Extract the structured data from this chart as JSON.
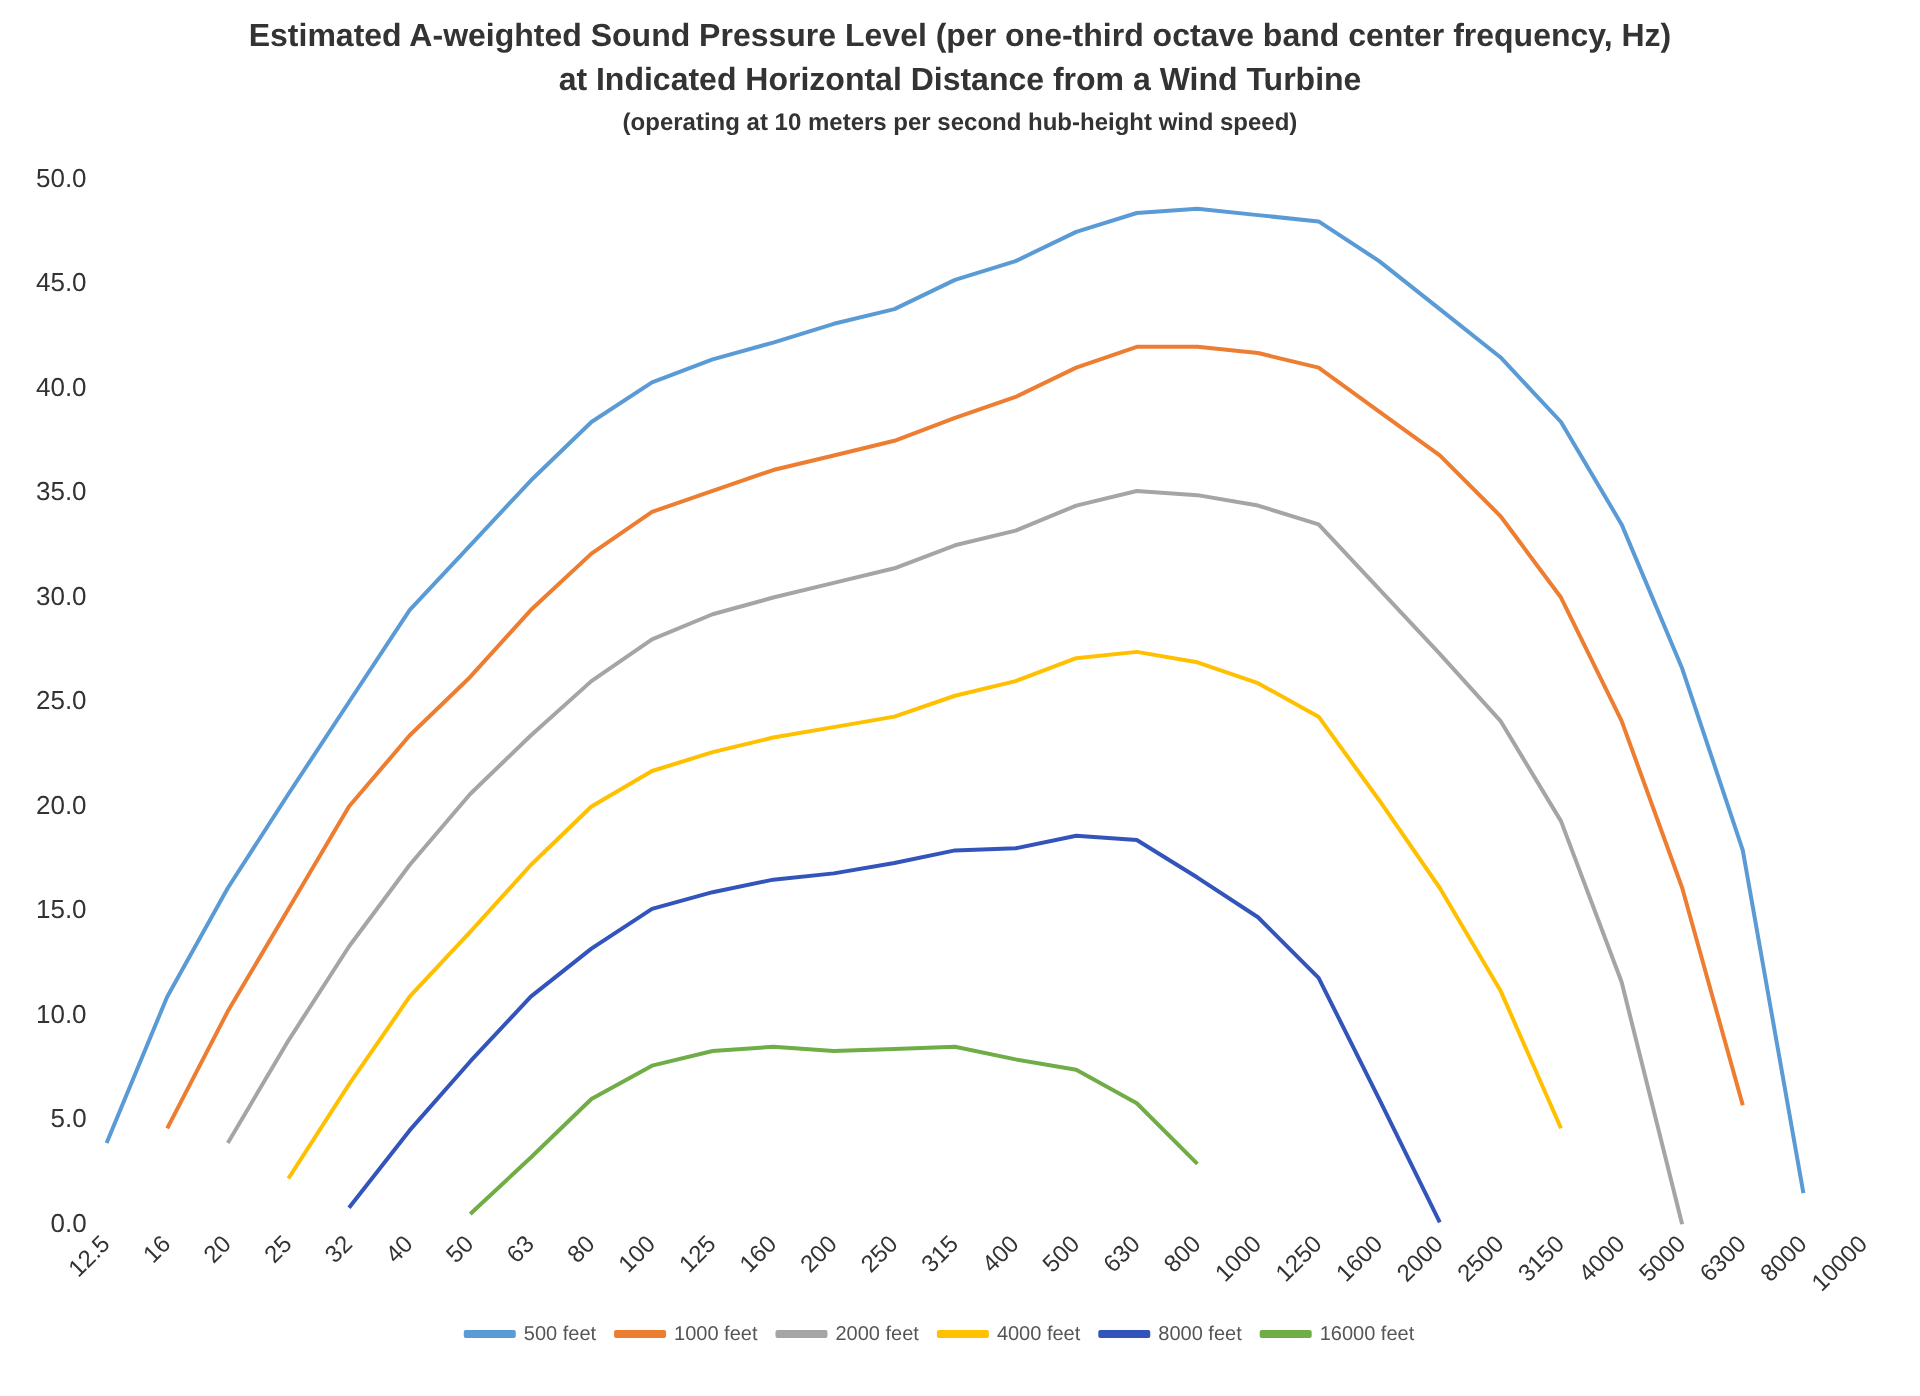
{
  "chart_data": {
    "type": "line",
    "title": "Estimated A-weighted Sound Pressure Level (per one-third octave band center frequency, Hz) at Indicated Horizontal Distance from a Wind Turbine",
    "subtitle": "(operating at 10 meters per second hub-height wind speed)",
    "categories": [
      "12.5",
      "16",
      "20",
      "25",
      "32",
      "40",
      "50",
      "63",
      "80",
      "100",
      "125",
      "160",
      "200",
      "250",
      "315",
      "400",
      "500",
      "630",
      "800",
      "1000",
      "1250",
      "1600",
      "2000",
      "2500",
      "3150",
      "4000",
      "5000",
      "6300",
      "8000",
      "10000"
    ],
    "series": [
      {
        "name": "500 feet",
        "color": "#5b9bd5",
        "values": [
          3.9,
          10.9,
          16.1,
          20.6,
          25.0,
          29.4,
          32.5,
          35.6,
          38.4,
          40.3,
          41.4,
          42.2,
          43.1,
          43.8,
          45.2,
          46.1,
          47.5,
          48.4,
          48.6,
          48.3,
          48.0,
          46.1,
          43.8,
          41.5,
          38.4,
          33.5,
          26.6,
          17.9,
          1.5,
          null
        ]
      },
      {
        "name": "1000 feet",
        "color": "#ed7d31",
        "values": [
          null,
          4.6,
          10.2,
          15.1,
          20.0,
          23.4,
          26.2,
          29.4,
          32.1,
          34.1,
          35.1,
          36.1,
          36.8,
          37.5,
          38.6,
          39.6,
          41.0,
          42.0,
          42.0,
          41.7,
          41.0,
          38.9,
          36.8,
          33.9,
          30.0,
          24.1,
          16.1,
          5.7,
          null,
          null
        ]
      },
      {
        "name": "2000 feet",
        "color": "#a5a5a5",
        "values": [
          null,
          null,
          3.9,
          8.8,
          13.3,
          17.2,
          20.6,
          23.4,
          26.0,
          28.0,
          29.2,
          30.0,
          30.7,
          31.4,
          32.5,
          33.2,
          34.4,
          35.1,
          34.9,
          34.4,
          33.5,
          30.4,
          27.3,
          24.1,
          19.3,
          11.6,
          0.0,
          null,
          null,
          null
        ]
      },
      {
        "name": "4000 feet",
        "color": "#ffc000",
        "values": [
          null,
          null,
          null,
          2.2,
          6.7,
          10.9,
          14.0,
          17.2,
          20.0,
          21.7,
          22.6,
          23.3,
          23.8,
          24.3,
          25.3,
          26.0,
          27.1,
          27.4,
          26.9,
          25.9,
          24.3,
          20.3,
          16.1,
          11.2,
          4.6,
          null,
          null,
          null,
          null,
          null
        ]
      },
      {
        "name": "8000 feet",
        "color": "#3355bb",
        "values": [
          null,
          null,
          null,
          null,
          0.8,
          4.5,
          7.8,
          10.9,
          13.2,
          15.1,
          15.9,
          16.5,
          16.8,
          17.3,
          17.9,
          18.0,
          18.6,
          18.4,
          16.6,
          14.7,
          11.8,
          6.0,
          0.1,
          null,
          null,
          null,
          null,
          null,
          null,
          null
        ]
      },
      {
        "name": "16000 feet",
        "color": "#70ad47",
        "values": [
          null,
          null,
          null,
          null,
          null,
          null,
          0.5,
          3.2,
          6.0,
          7.6,
          8.3,
          8.5,
          8.3,
          8.4,
          8.5,
          7.9,
          7.4,
          5.8,
          2.9,
          null,
          null,
          null,
          null,
          null,
          null,
          null,
          null,
          null,
          null,
          null
        ]
      }
    ],
    "ylim": [
      0,
      50
    ],
    "yticks": [
      {
        "value": 0,
        "label": "0.0"
      },
      {
        "value": 5,
        "label": "5.0"
      },
      {
        "value": 10,
        "label": "10.0"
      },
      {
        "value": 15,
        "label": "15.0"
      },
      {
        "value": 20,
        "label": "20.0"
      },
      {
        "value": 25,
        "label": "25.0"
      },
      {
        "value": 30,
        "label": "30.0"
      },
      {
        "value": 35,
        "label": "35.0"
      },
      {
        "value": 40,
        "label": "40.0"
      },
      {
        "value": 45,
        "label": "45.0"
      },
      {
        "value": 50,
        "label": "50.0"
      }
    ],
    "grid": false,
    "legend": "bottom",
    "marker": "none",
    "line_style": "solid"
  }
}
